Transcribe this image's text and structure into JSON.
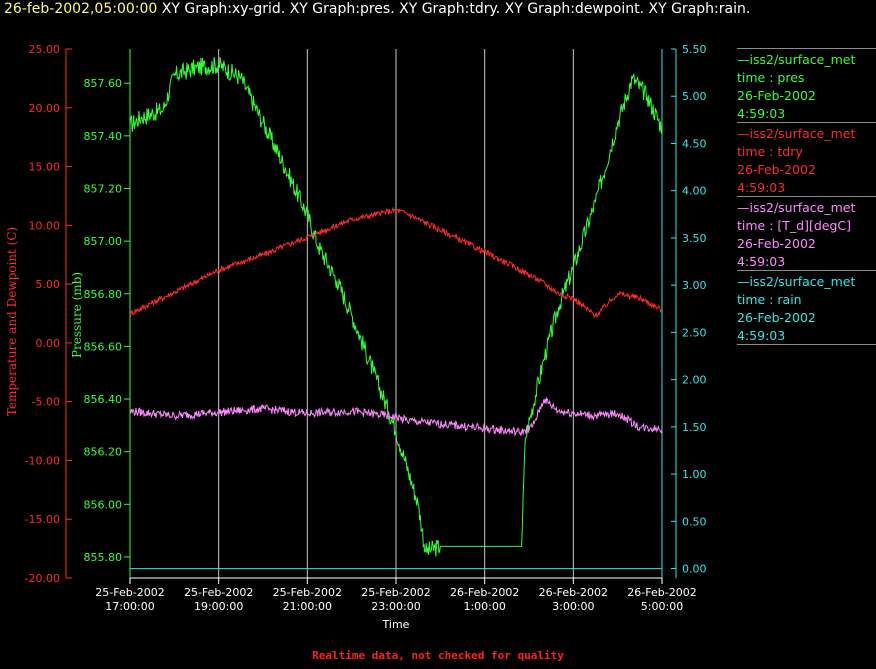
{
  "header": {
    "timestamp": "26-feb-2002,05:00:00",
    "graph_list": "XY Graph:xy-grid.  XY Graph:pres.  XY Graph:tdry.  XY Graph:dewpoint.  XY Graph:rain."
  },
  "footnote": "Realtime data, not checked for quality",
  "colors": {
    "pres": "#33ff33",
    "tdry": "#ff2a2a",
    "dewpoint": "#ff88ff",
    "rain": "#33e6e6",
    "grid": "#c8c8c8",
    "header_timestamp": "#ffff66"
  },
  "legend": [
    {
      "source": "—iss2/surface_met",
      "var": "time : pres",
      "date": "26-Feb-2002",
      "time": "4:59:03",
      "color": "#33ff33"
    },
    {
      "source": "—iss2/surface_met",
      "var": "time : tdry",
      "date": "26-Feb-2002",
      "time": "4:59:03",
      "color": "#ff2a2a"
    },
    {
      "source": "—iss2/surface_met",
      "var": "time : [T_d][degC]",
      "date": "26-Feb-2002",
      "time": "4:59:03",
      "color": "#ff88ff"
    },
    {
      "source": "—iss2/surface_met",
      "var": "time : rain",
      "date": "26-Feb-2002",
      "time": "4:59:03",
      "color": "#33e6e6"
    }
  ],
  "chart_data": {
    "type": "line",
    "xlabel": "Time",
    "x_range": [
      "25-Feb-2002 17:00:00",
      "26-Feb-2002 05:00:00"
    ],
    "x_ticks": [
      {
        "date": "25-Feb-2002",
        "time": "17:00:00"
      },
      {
        "date": "25-Feb-2002",
        "time": "19:00:00"
      },
      {
        "date": "25-Feb-2002",
        "time": "21:00:00"
      },
      {
        "date": "25-Feb-2002",
        "time": "23:00:00"
      },
      {
        "date": "26-Feb-2002",
        "time": "1:00:00"
      },
      {
        "date": "26-Feb-2002",
        "time": "3:00:00"
      },
      {
        "date": "26-Feb-2002",
        "time": "5:00:00"
      }
    ],
    "grid": true,
    "axes": {
      "temp": {
        "label": "Temperature and Dewpoint (C)",
        "range": [
          -20,
          25
        ],
        "ticks": [
          "25.00",
          "20.00",
          "15.00",
          "10.00",
          "5.00",
          "0.00",
          "-5.00",
          "-10.00",
          "-15.00",
          "-20.00"
        ]
      },
      "pres": {
        "label": "Pressure (mb)",
        "range": [
          855.72,
          857.73
        ],
        "ticks": [
          "857.60",
          "857.40",
          "857.20",
          "857.00",
          "856.80",
          "856.60",
          "856.40",
          "856.20",
          "856.00",
          "855.80"
        ]
      },
      "rain": {
        "label": "",
        "range": [
          -0.1,
          5.5
        ],
        "ticks": [
          "5.50",
          "5.00",
          "4.50",
          "4.00",
          "3.50",
          "3.00",
          "2.50",
          "2.00",
          "1.50",
          "1.00",
          "0.50",
          "0.00"
        ]
      }
    },
    "series": [
      {
        "key": "pres",
        "axis": "pres",
        "points": [
          [
            "25-Feb-2002 17:00",
            857.44
          ],
          [
            "25-Feb-2002 17:15",
            857.47
          ],
          [
            "25-Feb-2002 17:45",
            857.5
          ],
          [
            "25-Feb-2002 18:00",
            857.63
          ],
          [
            "25-Feb-2002 18:30",
            857.66
          ],
          [
            "25-Feb-2002 19:00",
            857.67
          ],
          [
            "25-Feb-2002 19:30",
            857.62
          ],
          [
            "25-Feb-2002 20:00",
            857.45
          ],
          [
            "25-Feb-2002 20:30",
            857.28
          ],
          [
            "25-Feb-2002 21:00",
            857.1
          ],
          [
            "25-Feb-2002 21:15",
            856.98
          ],
          [
            "25-Feb-2002 21:40",
            856.85
          ],
          [
            "25-Feb-2002 22:00",
            856.72
          ],
          [
            "25-Feb-2002 22:30",
            856.5
          ],
          [
            "25-Feb-2002 23:00",
            856.28
          ],
          [
            "25-Feb-2002 23:30",
            856.0
          ],
          [
            "25-Feb-2002 23:40",
            855.82
          ],
          [
            "26-Feb-2002 00:00",
            855.84
          ],
          [
            "26-Feb-2002 01:00",
            855.84
          ],
          [
            "26-Feb-2002 01:50",
            855.84
          ],
          [
            "26-Feb-2002 01:55",
            856.25
          ],
          [
            "26-Feb-2002 02:20",
            856.55
          ],
          [
            "26-Feb-2002 02:40",
            856.75
          ],
          [
            "26-Feb-2002 03:00",
            856.9
          ],
          [
            "26-Feb-2002 03:30",
            857.15
          ],
          [
            "26-Feb-2002 04:00",
            857.45
          ],
          [
            "26-Feb-2002 04:20",
            857.62
          ],
          [
            "26-Feb-2002 04:40",
            857.55
          ],
          [
            "26-Feb-2002 05:00",
            857.43
          ]
        ]
      },
      {
        "key": "tdry",
        "axis": "temp",
        "points": [
          [
            "25-Feb-2002 17:00",
            2.5
          ],
          [
            "25-Feb-2002 18:00",
            4.3
          ],
          [
            "25-Feb-2002 19:00",
            6.2
          ],
          [
            "25-Feb-2002 20:00",
            7.5
          ],
          [
            "25-Feb-2002 21:00",
            9.0
          ],
          [
            "25-Feb-2002 22:00",
            10.5
          ],
          [
            "25-Feb-2002 23:00",
            11.3
          ],
          [
            "25-Feb-2002 23:15",
            11.0
          ],
          [
            "26-Feb-2002 01:30",
            6.8
          ],
          [
            "26-Feb-2002 02:15",
            5.3
          ],
          [
            "26-Feb-2002 02:40",
            4.2
          ],
          [
            "26-Feb-2002 03:00",
            3.8
          ],
          [
            "26-Feb-2002 03:30",
            2.3
          ],
          [
            "26-Feb-2002 04:00",
            4.2
          ],
          [
            "26-Feb-2002 04:30",
            3.8
          ],
          [
            "26-Feb-2002 05:00",
            2.8
          ]
        ]
      },
      {
        "key": "dewpoint",
        "axis": "temp",
        "points": [
          [
            "25-Feb-2002 17:00",
            -5.8
          ],
          [
            "25-Feb-2002 18:00",
            -6.2
          ],
          [
            "25-Feb-2002 19:00",
            -5.9
          ],
          [
            "25-Feb-2002 20:00",
            -5.6
          ],
          [
            "25-Feb-2002 21:00",
            -6.0
          ],
          [
            "25-Feb-2002 22:00",
            -5.8
          ],
          [
            "25-Feb-2002 23:00",
            -6.3
          ],
          [
            "25-Feb-2002 23:15",
            -6.6
          ],
          [
            "26-Feb-2002 01:50",
            -7.6
          ],
          [
            "26-Feb-2002 02:05",
            -7.1
          ],
          [
            "26-Feb-2002 02:20",
            -4.8
          ],
          [
            "26-Feb-2002 02:40",
            -5.8
          ],
          [
            "26-Feb-2002 03:30",
            -6.2
          ],
          [
            "26-Feb-2002 04:00",
            -6.0
          ],
          [
            "26-Feb-2002 04:30",
            -7.2
          ],
          [
            "26-Feb-2002 05:00",
            -7.3
          ]
        ]
      },
      {
        "key": "rain",
        "axis": "rain",
        "points": [
          [
            "25-Feb-2002 17:00",
            0.0
          ],
          [
            "26-Feb-2002 05:00",
            0.0
          ]
        ]
      }
    ]
  }
}
